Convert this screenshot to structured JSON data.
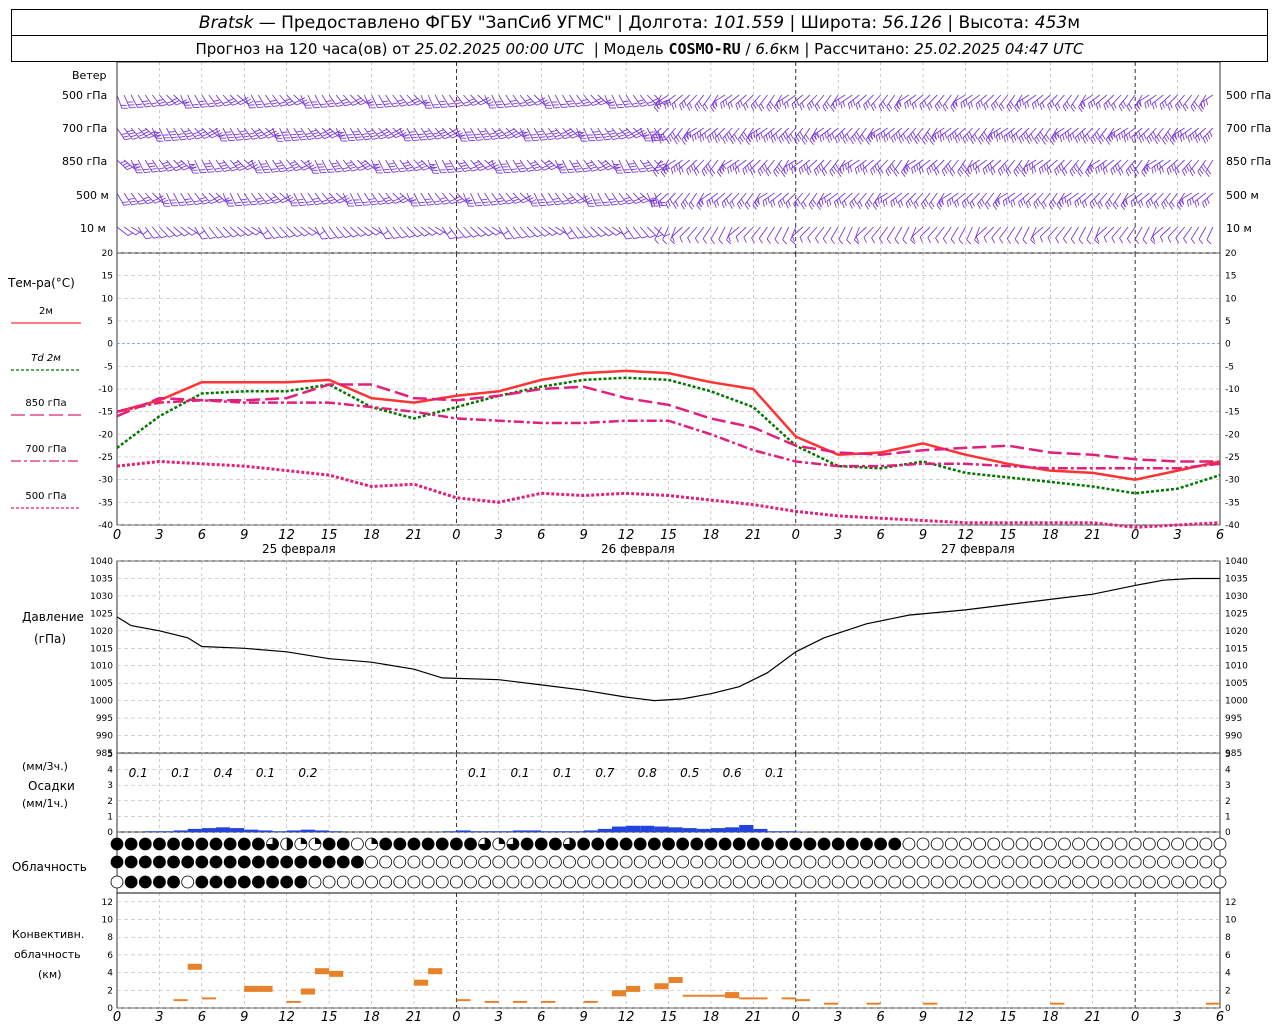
{
  "header": {
    "station": "Bratsk",
    "provider": "— Предоставлено ФГБУ \"ЗапСиб УГМС\"",
    "lon_label": "Долгота:",
    "lon_value": "101.559",
    "lat_label": "Широта:",
    "lat_value": "56.126",
    "alt_label": "Высота:",
    "alt_value": "453",
    "alt_unit": "м",
    "forecast_text": "Прогноз на 120 часа(ов) от",
    "forecast_start": "25.02.2025 00:00 UTC",
    "model_label": "Модель",
    "model_name": "COSMO-RU",
    "model_res": "6.6",
    "model_res_unit": "км",
    "calc_label": "Рассчитано:",
    "calc_time": "25.02.2025 04:47 UTC"
  },
  "labels": {
    "wind": "Ветер",
    "wind_levels": [
      "500 гПа",
      "700 гПа",
      "850 гПа",
      "500 м",
      "10 м"
    ],
    "temp": "Тем-ра(°C)",
    "legend": [
      {
        "text": "2м",
        "color": "#ff3333",
        "dash": ""
      },
      {
        "text": "Td 2м",
        "color": "#007700",
        "dash": "3,2"
      },
      {
        "text": "850 гПа",
        "color": "#e0207a",
        "dash": "14,5"
      },
      {
        "text": "700 гПа",
        "color": "#e0207a",
        "dash": "10,3,3,3"
      },
      {
        "text": "500 гПа",
        "color": "#e0207a",
        "dash": "3,2"
      }
    ],
    "pressure": "Давление",
    "pressure_unit": "(гПа)",
    "precip_unit3": "(мм/3ч.)",
    "precip": "Осадки",
    "precip_unit1": "(мм/1ч.)",
    "cloud": "Облачность",
    "conv1": "Конвективн.",
    "conv2": "облачность",
    "conv3": "(км)",
    "days": [
      "25 февраля",
      "26 февраля",
      "27 февраля"
    ]
  },
  "chart_data": {
    "type": "line",
    "x_hours": [
      0,
      3,
      6,
      9,
      12,
      15,
      18,
      21,
      24,
      27,
      30,
      33,
      36,
      39,
      42,
      45,
      48,
      51,
      54,
      57,
      60,
      63,
      66,
      69,
      72,
      75,
      78
    ],
    "x_tick_labels": [
      "0",
      "3",
      "6",
      "9",
      "12",
      "15",
      "18",
      "21",
      "0",
      "3",
      "6",
      "9",
      "12",
      "15",
      "18",
      "21",
      "0",
      "3",
      "6",
      "9",
      "12",
      "15",
      "18",
      "21",
      "0",
      "3",
      "6"
    ],
    "temperature": {
      "ylim": [
        -40,
        20
      ],
      "yticks": [
        20,
        15,
        10,
        5,
        0,
        -5,
        -10,
        -15,
        -20,
        -25,
        -30,
        -35,
        -40
      ],
      "series": [
        {
          "name": "2м",
          "color": "#ff3333",
          "dash": "",
          "width": 2.5,
          "points": [
            [
              0,
              -15
            ],
            [
              3,
              -12.5
            ],
            [
              6,
              -8.5
            ],
            [
              9,
              -8.5
            ],
            [
              12,
              -8.5
            ],
            [
              15,
              -8
            ],
            [
              18,
              -12
            ],
            [
              21,
              -13
            ],
            [
              24,
              -11.5
            ],
            [
              27,
              -10.5
            ],
            [
              30,
              -8
            ],
            [
              33,
              -6.5
            ],
            [
              36,
              -6
            ],
            [
              39,
              -6.5
            ],
            [
              42,
              -8.5
            ],
            [
              45,
              -10
            ],
            [
              48,
              -20.5
            ],
            [
              51,
              -24.5
            ],
            [
              54,
              -24
            ],
            [
              57,
              -22
            ],
            [
              60,
              -24.5
            ],
            [
              63,
              -26.5
            ],
            [
              66,
              -28
            ],
            [
              69,
              -28.5
            ],
            [
              72,
              -30
            ],
            [
              75,
              -28
            ],
            [
              78,
              -26
            ]
          ]
        },
        {
          "name": "Td 2м",
          "color": "#007700",
          "dash": "3,2",
          "width": 2.5,
          "points": [
            [
              0,
              -23
            ],
            [
              3,
              -16
            ],
            [
              6,
              -11
            ],
            [
              9,
              -10.5
            ],
            [
              12,
              -10.5
            ],
            [
              15,
              -9
            ],
            [
              18,
              -14
            ],
            [
              21,
              -16.5
            ],
            [
              24,
              -14
            ],
            [
              27,
              -11.5
            ],
            [
              30,
              -9.5
            ],
            [
              33,
              -8
            ],
            [
              36,
              -7.5
            ],
            [
              39,
              -8
            ],
            [
              42,
              -10.5
            ],
            [
              45,
              -14
            ],
            [
              48,
              -22.5
            ],
            [
              51,
              -27
            ],
            [
              54,
              -27.5
            ],
            [
              57,
              -26
            ],
            [
              60,
              -28.5
            ],
            [
              63,
              -29.5
            ],
            [
              66,
              -30.5
            ],
            [
              69,
              -31.5
            ],
            [
              72,
              -33
            ],
            [
              75,
              -32
            ],
            [
              78,
              -29
            ]
          ]
        },
        {
          "name": "850 гПа",
          "color": "#e0207a",
          "dash": "14,5",
          "width": 2.5,
          "points": [
            [
              0,
              -16
            ],
            [
              3,
              -12
            ],
            [
              6,
              -12.5
            ],
            [
              9,
              -12.5
            ],
            [
              12,
              -12
            ],
            [
              15,
              -9
            ],
            [
              18,
              -9
            ],
            [
              21,
              -12
            ],
            [
              24,
              -12.5
            ],
            [
              27,
              -11.5
            ],
            [
              30,
              -10
            ],
            [
              33,
              -9.5
            ],
            [
              36,
              -12
            ],
            [
              39,
              -13.5
            ],
            [
              42,
              -16.5
            ],
            [
              45,
              -18.5
            ],
            [
              48,
              -22.5
            ],
            [
              51,
              -24
            ],
            [
              54,
              -24.5
            ],
            [
              57,
              -23.5
            ],
            [
              60,
              -23
            ],
            [
              63,
              -22.5
            ],
            [
              66,
              -24
            ],
            [
              69,
              -24.5
            ],
            [
              72,
              -25.5
            ],
            [
              75,
              -26
            ],
            [
              78,
              -26
            ]
          ]
        },
        {
          "name": "700 гПа",
          "color": "#e0207a",
          "dash": "10,3,3,3",
          "width": 2.5,
          "points": [
            [
              0,
              -15
            ],
            [
              3,
              -13
            ],
            [
              6,
              -12.5
            ],
            [
              9,
              -13
            ],
            [
              12,
              -13
            ],
            [
              15,
              -13
            ],
            [
              18,
              -14
            ],
            [
              21,
              -15
            ],
            [
              24,
              -16.5
            ],
            [
              27,
              -17
            ],
            [
              30,
              -17.5
            ],
            [
              33,
              -17.5
            ],
            [
              36,
              -17
            ],
            [
              39,
              -17
            ],
            [
              42,
              -20
            ],
            [
              45,
              -23.5
            ],
            [
              48,
              -26
            ],
            [
              51,
              -27
            ],
            [
              54,
              -27
            ],
            [
              57,
              -26.5
            ],
            [
              60,
              -26.5
            ],
            [
              63,
              -27
            ],
            [
              66,
              -27.5
            ],
            [
              69,
              -27.5
            ],
            [
              72,
              -27.5
            ],
            [
              75,
              -27.5
            ],
            [
              78,
              -26.5
            ]
          ]
        },
        {
          "name": "500 гПа",
          "color": "#e0207a",
          "dash": "3,2",
          "width": 3,
          "points": [
            [
              0,
              -27
            ],
            [
              3,
              -26
            ],
            [
              6,
              -26.5
            ],
            [
              9,
              -27
            ],
            [
              12,
              -28
            ],
            [
              15,
              -29
            ],
            [
              18,
              -31.5
            ],
            [
              21,
              -31
            ],
            [
              24,
              -34
            ],
            [
              27,
              -35
            ],
            [
              30,
              -33
            ],
            [
              33,
              -33.5
            ],
            [
              36,
              -33
            ],
            [
              39,
              -33.5
            ],
            [
              42,
              -34.5
            ],
            [
              45,
              -35.5
            ],
            [
              48,
              -37
            ],
            [
              51,
              -38
            ],
            [
              54,
              -38.5
            ],
            [
              57,
              -39
            ],
            [
              60,
              -39.5
            ],
            [
              63,
              -39.5
            ],
            [
              66,
              -39.5
            ],
            [
              69,
              -39.5
            ],
            [
              72,
              -40.5
            ],
            [
              75,
              -40
            ],
            [
              78,
              -39.5
            ]
          ]
        }
      ]
    },
    "pressure": {
      "ylim": [
        985,
        1040
      ],
      "yticks": [
        1040,
        1035,
        1030,
        1025,
        1020,
        1015,
        1010,
        1005,
        1000,
        995,
        990,
        985
      ],
      "values": [
        [
          0,
          1024
        ],
        [
          1,
          1021.5
        ],
        [
          3,
          1020
        ],
        [
          5,
          1018
        ],
        [
          6,
          1015.5
        ],
        [
          9,
          1015
        ],
        [
          12,
          1014
        ],
        [
          15,
          1012
        ],
        [
          18,
          1011
        ],
        [
          21,
          1009
        ],
        [
          23,
          1006.5
        ],
        [
          27,
          1006
        ],
        [
          30,
          1004.5
        ],
        [
          33,
          1003
        ],
        [
          36,
          1001
        ],
        [
          38,
          1000
        ],
        [
          40,
          1000.5
        ],
        [
          42,
          1002
        ],
        [
          44,
          1004
        ],
        [
          46,
          1008
        ],
        [
          48,
          1014
        ],
        [
          50,
          1018
        ],
        [
          53,
          1022
        ],
        [
          56,
          1024.5
        ],
        [
          60,
          1026
        ],
        [
          63,
          1027.5
        ],
        [
          66,
          1029
        ],
        [
          69,
          1030.5
        ],
        [
          72,
          1033
        ],
        [
          74,
          1034.5
        ],
        [
          76,
          1035
        ],
        [
          78,
          1035
        ]
      ]
    },
    "precip": {
      "ylim": [
        0,
        5
      ],
      "yticks": [
        5,
        4,
        3,
        2,
        1,
        0
      ],
      "labels_3h": [
        {
          "x": 1.5,
          "text": "0.1"
        },
        {
          "x": 4.5,
          "text": "0.1"
        },
        {
          "x": 7.5,
          "text": "0.4"
        },
        {
          "x": 10.5,
          "text": "0.1"
        },
        {
          "x": 13.5,
          "text": "0.2"
        },
        {
          "x": 25.5,
          "text": "0.1"
        },
        {
          "x": 28.5,
          "text": "0.1"
        },
        {
          "x": 31.5,
          "text": "0.1"
        },
        {
          "x": 34.5,
          "text": "0.7"
        },
        {
          "x": 37.5,
          "text": "0.8"
        },
        {
          "x": 40.5,
          "text": "0.5"
        },
        {
          "x": 43.5,
          "text": "0.6"
        },
        {
          "x": 46.5,
          "text": "0.1"
        }
      ],
      "hourly": [
        0,
        0,
        0.05,
        0.05,
        0.1,
        0.2,
        0.25,
        0.3,
        0.25,
        0.15,
        0.1,
        0.05,
        0.1,
        0.15,
        0.1,
        0.05,
        0,
        0,
        0,
        0,
        0,
        0,
        0,
        0.05,
        0.1,
        0.05,
        0.05,
        0.05,
        0.1,
        0.1,
        0.05,
        0.05,
        0.05,
        0.1,
        0.2,
        0.35,
        0.4,
        0.4,
        0.35,
        0.3,
        0.25,
        0.2,
        0.25,
        0.3,
        0.45,
        0.2,
        0.05,
        0.05,
        0.02,
        0,
        0,
        0,
        0,
        0,
        0,
        0,
        0,
        0,
        0,
        0,
        0,
        0,
        0,
        0,
        0,
        0,
        0,
        0,
        0,
        0,
        0,
        0,
        0,
        0,
        0,
        0,
        0,
        0
      ]
    },
    "cloud_cover_rows": [
      "888888888886422880288888886268886888888888888888888888880000000000000000000000",
      "888888888888888888000000000000000000000000000000000000000000000000000000000000",
      "088880888888880000000000000000000000000000000000000000000000000000000000000000"
    ],
    "convective_cloud_km": {
      "ylim": [
        0,
        13
      ],
      "yticks": [
        12,
        10,
        8,
        6,
        4,
        2,
        0
      ],
      "bars": [
        [
          4.5,
          1
        ],
        [
          5.5,
          5
        ],
        [
          6.5,
          1.2
        ],
        [
          9.5,
          2.5
        ],
        [
          10.5,
          2.5
        ],
        [
          12.5,
          0.8
        ],
        [
          13.5,
          2.2
        ],
        [
          14.5,
          4.5
        ],
        [
          15.5,
          4.2
        ],
        [
          21.5,
          3.2
        ],
        [
          22.5,
          4.5
        ],
        [
          24.5,
          1
        ],
        [
          26.5,
          0.8
        ],
        [
          28.5,
          0.8
        ],
        [
          30.5,
          0.8
        ],
        [
          33.5,
          0.8
        ],
        [
          35.5,
          2
        ],
        [
          36.5,
          2.5
        ],
        [
          38.5,
          2.8
        ],
        [
          39.5,
          3.5
        ],
        [
          40.5,
          1.5
        ],
        [
          41.5,
          1.5
        ],
        [
          42.5,
          1.5
        ],
        [
          43.5,
          1.8
        ],
        [
          44.5,
          1.2
        ],
        [
          45.5,
          1.2
        ],
        [
          47.5,
          1.2
        ],
        [
          48.5,
          1
        ],
        [
          50.5,
          0.6
        ],
        [
          53.5,
          0.6
        ],
        [
          57.5,
          0.6
        ],
        [
          66.5,
          0.6
        ],
        [
          77.5,
          0.6
        ]
      ]
    }
  }
}
